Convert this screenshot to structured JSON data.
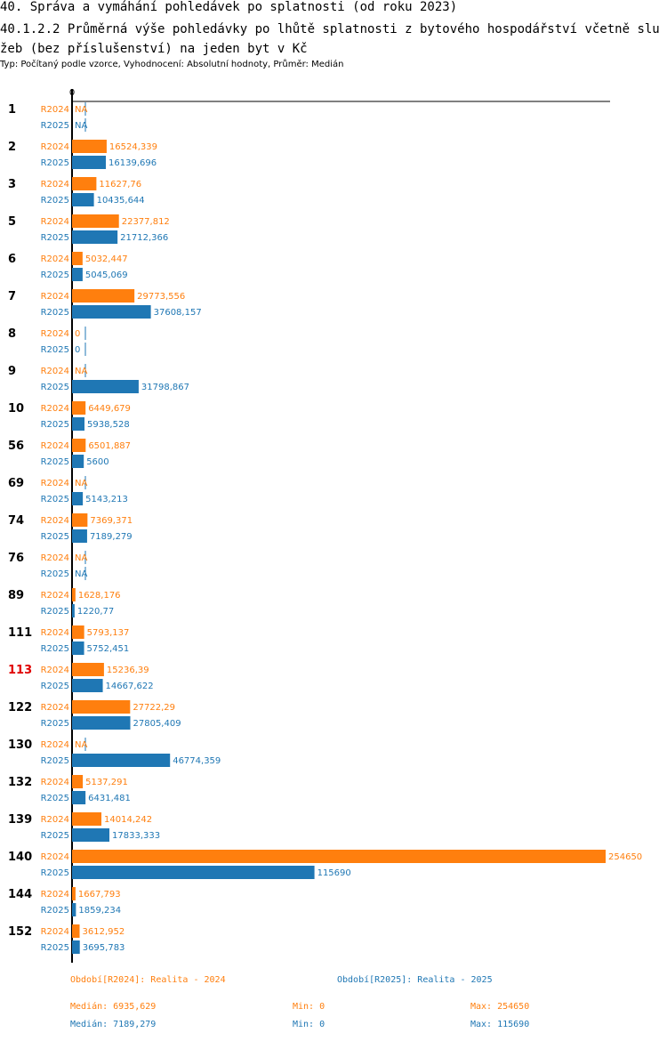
{
  "header": {
    "title": "40. Správa a vymáhání pohledávek po splatnosti (od roku 2023)",
    "subtitle_line": "40.1.2.2 Průměrná výše pohledávky po lhůtě splatnosti z bytového hospodářství včetně služeb (bez příslušenství) na jeden byt v Kč",
    "meta": "Typ: Počítaný podle vzorce, Vyhodnocení: Absolutní hodnoty, Průměr: Medián"
  },
  "colors": {
    "R2024": "#ff7f0e",
    "R2025": "#1f77b4",
    "highlight": "#e00000"
  },
  "chart_data": {
    "type": "bar",
    "orientation": "horizontal",
    "title": "40.1.2.2 Průměrná výše pohledávky po lhůtě splatnosti z bytového hospodářství včetně služeb (bez příslušenství) na jeden byt v Kč",
    "axis_zero_label": "0",
    "xlim": [
      0,
      254650
    ],
    "highlight_group": "113",
    "series": [
      {
        "name": "R2024",
        "values": [
          null,
          16524.339,
          11627.76,
          22377.812,
          5032.447,
          29773.556,
          0,
          null,
          6449.679,
          6501.887,
          null,
          7369.371,
          null,
          1628.176,
          5793.137,
          15236.39,
          27722.29,
          null,
          5137.291,
          14014.242,
          254650,
          1667.793,
          3612.952
        ],
        "labels": [
          "NA",
          "16524,339",
          "11627,76",
          "22377,812",
          "5032,447",
          "29773,556",
          "0",
          "NA",
          "6449,679",
          "6501,887",
          "NA",
          "7369,371",
          "NA",
          "1628,176",
          "5793,137",
          "15236,39",
          "27722,29",
          "NA",
          "5137,291",
          "14014,242",
          "254650",
          "1667,793",
          "3612,952"
        ]
      },
      {
        "name": "R2025",
        "values": [
          null,
          16139.696,
          10435.644,
          21712.366,
          5045.069,
          37608.157,
          0,
          31798.867,
          5938.528,
          5600,
          5143.213,
          7189.279,
          null,
          1220.77,
          5752.451,
          14667.622,
          27805.409,
          46774.359,
          6431.481,
          17833.333,
          115690,
          1859.234,
          3695.783
        ],
        "labels": [
          "NA",
          "16139,696",
          "10435,644",
          "21712,366",
          "5045,069",
          "37608,157",
          "0",
          "31798,867",
          "5938,528",
          "5600",
          "5143,213",
          "7189,279",
          "NA",
          "1220,77",
          "5752,451",
          "14667,622",
          "27805,409",
          "46774,359",
          "6431,481",
          "17833,333",
          "115690",
          "1859,234",
          "3695,783"
        ]
      }
    ],
    "categories": [
      "1",
      "2",
      "3",
      "5",
      "6",
      "7",
      "8",
      "9",
      "10",
      "56",
      "69",
      "74",
      "76",
      "89",
      "111",
      "113",
      "122",
      "130",
      "132",
      "139",
      "140",
      "144",
      "152"
    ]
  },
  "legend": {
    "R2024": {
      "period": "Období[R2024]: Realita - 2024",
      "median": "Medián: 6935,629",
      "min": "Min: 0",
      "max": "Max: 254650"
    },
    "R2025": {
      "period": "Období[R2025]: Realita - 2025",
      "median": "Medián: 7189,279",
      "min": "Min: 0",
      "max": "Max: 115690"
    }
  }
}
